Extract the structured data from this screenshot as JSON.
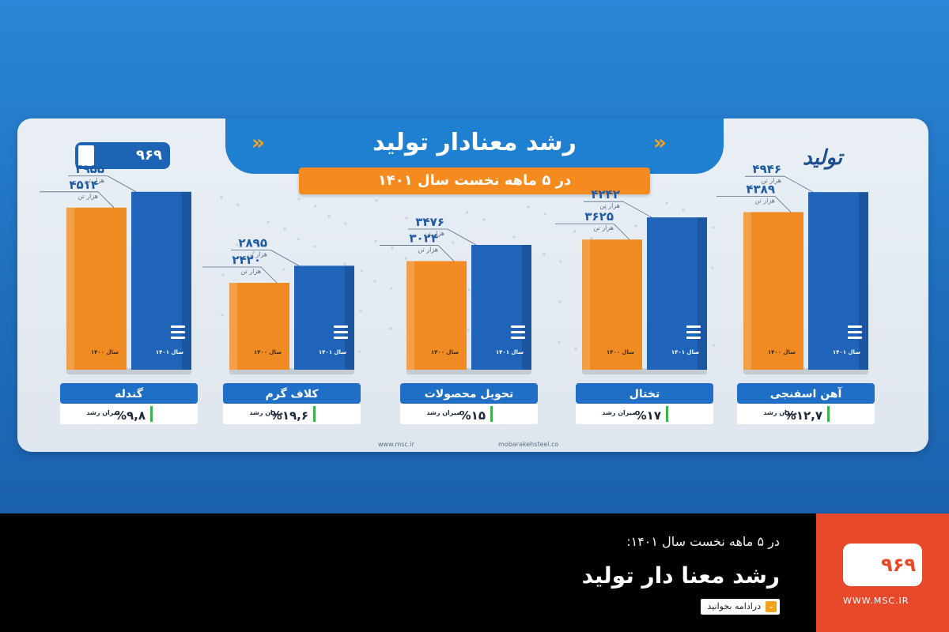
{
  "header": {
    "title": "رشد معنادار تولید",
    "subtitle": "در ۵ ماهه نخست سال ۱۴۰۱",
    "chevrons": "»",
    "logo_left": "۹۶۹",
    "logo_right": "تولید"
  },
  "unit_label": "هزار تن",
  "year_label_prev": "سال ۱۴۰۰",
  "year_label_curr": "سال ۱۴۰۱",
  "growth_caption": "میزان رشد",
  "colors": {
    "bar_prev": "#f08a22",
    "bar_curr": "#1f64b8",
    "label_bg": "#1f6fc7",
    "value_text": "#1d5aa6"
  },
  "chart_data": {
    "type": "bar",
    "title": "رشد معنادار تولید",
    "subtitle": "در ۵ ماهه نخست سال ۱۴۰۱",
    "unit": "هزار تن",
    "categories": [
      "آهن اسفنجی",
      "تختال",
      "تحویل محصولات",
      "کلاف گرم",
      "گندله"
    ],
    "series": [
      {
        "name": "سال ۱۴۰۰",
        "values": [
          4389,
          3625,
          3024,
          2420,
          4514
        ],
        "labels": [
          "۴۳۸۹",
          "۳۶۲۵",
          "۳۰۲۴",
          "۲۴۲۰",
          "۴۵۱۴"
        ]
      },
      {
        "name": "سال ۱۴۰۱",
        "values": [
          4946,
          4242,
          3476,
          2895,
          4955
        ],
        "labels": [
          "۴۹۴۶",
          "۴۲۴۲",
          "۳۴۷۶",
          "۲۸۹۵",
          "۴۹۵۵"
        ]
      }
    ],
    "growth": [
      "%۱۲,۷",
      "%۱۷",
      "%۱۵",
      "%۱۹,۶",
      "%۹,۸"
    ],
    "ylim": [
      0,
      5500
    ]
  },
  "footer": {
    "url_left": "www.msc.ir",
    "url_right": "mobarakehsteel.co"
  },
  "news": {
    "kicker": "در ۵ ماهه نخست سال ۱۴۰۱:",
    "title": "رشد معنا دار تولید",
    "read_more": "درادامه بخوانید"
  },
  "brand": {
    "logo": "۹۶۹",
    "website": "WWW.MSC.IR"
  }
}
